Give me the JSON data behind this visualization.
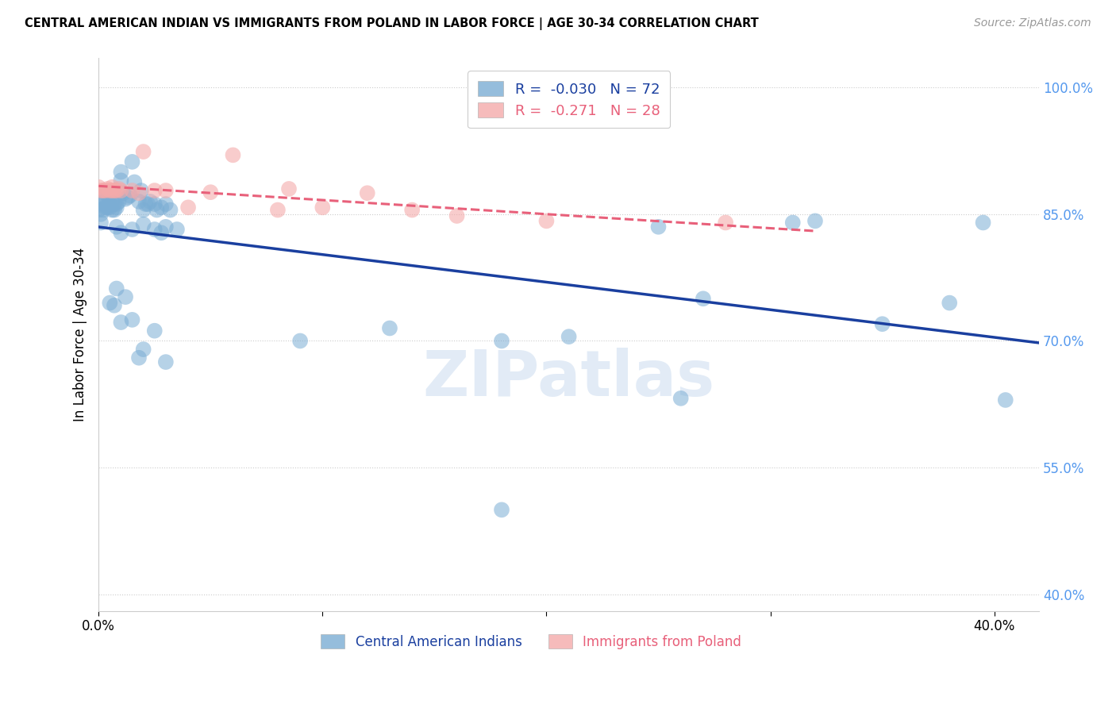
{
  "title": "CENTRAL AMERICAN INDIAN VS IMMIGRANTS FROM POLAND IN LABOR FORCE | AGE 30-34 CORRELATION CHART",
  "source": "Source: ZipAtlas.com",
  "ylabel": "In Labor Force | Age 30-34",
  "xlim": [
    0.0,
    0.42
  ],
  "ylim": [
    0.38,
    1.035
  ],
  "yticks": [
    0.4,
    0.55,
    0.7,
    0.85,
    1.0
  ],
  "ytick_labels": [
    "40.0%",
    "55.0%",
    "70.0%",
    "85.0%",
    "100.0%"
  ],
  "xticks": [
    0.0,
    0.1,
    0.2,
    0.3,
    0.4
  ],
  "xtick_labels": [
    "0.0%",
    "",
    "",
    "",
    "40.0%"
  ],
  "r_blue": -0.03,
  "n_blue": 72,
  "r_pink": -0.271,
  "n_pink": 28,
  "blue_color": "#7BADD4",
  "pink_color": "#F4AAAA",
  "line_blue": "#1A3F9F",
  "line_pink": "#E8607A",
  "watermark": "ZIPatlas",
  "blue_x": [
    0.0,
    0.0,
    0.001,
    0.001,
    0.002,
    0.002,
    0.003,
    0.003,
    0.003,
    0.004,
    0.004,
    0.005,
    0.005,
    0.005,
    0.006,
    0.006,
    0.007,
    0.007,
    0.008,
    0.008,
    0.009,
    0.01,
    0.01,
    0.011,
    0.012,
    0.013,
    0.014,
    0.015,
    0.016,
    0.018,
    0.019,
    0.02,
    0.021,
    0.022,
    0.023,
    0.025,
    0.026,
    0.028,
    0.03,
    0.032,
    0.005,
    0.007,
    0.008,
    0.01,
    0.012,
    0.015,
    0.018,
    0.02,
    0.025,
    0.03,
    0.008,
    0.01,
    0.015,
    0.02,
    0.025,
    0.028,
    0.03,
    0.035,
    0.09,
    0.13,
    0.18,
    0.21,
    0.25,
    0.26,
    0.31,
    0.32,
    0.27,
    0.35,
    0.38,
    0.395,
    0.405,
    0.18
  ],
  "blue_y": [
    0.87,
    0.855,
    0.85,
    0.84,
    0.855,
    0.862,
    0.858,
    0.865,
    0.875,
    0.858,
    0.862,
    0.862,
    0.874,
    0.858,
    0.855,
    0.865,
    0.855,
    0.862,
    0.862,
    0.858,
    0.865,
    0.89,
    0.9,
    0.875,
    0.868,
    0.87,
    0.872,
    0.912,
    0.888,
    0.865,
    0.878,
    0.855,
    0.862,
    0.862,
    0.865,
    0.862,
    0.855,
    0.858,
    0.862,
    0.855,
    0.745,
    0.742,
    0.762,
    0.722,
    0.752,
    0.725,
    0.68,
    0.69,
    0.712,
    0.675,
    0.835,
    0.828,
    0.832,
    0.838,
    0.832,
    0.828,
    0.835,
    0.832,
    0.7,
    0.715,
    0.7,
    0.705,
    0.835,
    0.632,
    0.84,
    0.842,
    0.75,
    0.72,
    0.745,
    0.84,
    0.63,
    0.5
  ],
  "pink_x": [
    0.0,
    0.001,
    0.002,
    0.003,
    0.004,
    0.005,
    0.006,
    0.006,
    0.007,
    0.008,
    0.009,
    0.01,
    0.015,
    0.018,
    0.02,
    0.025,
    0.03,
    0.04,
    0.05,
    0.06,
    0.08,
    0.085,
    0.1,
    0.12,
    0.14,
    0.16,
    0.2,
    0.28
  ],
  "pink_y": [
    0.882,
    0.878,
    0.878,
    0.878,
    0.88,
    0.878,
    0.878,
    0.882,
    0.878,
    0.878,
    0.88,
    0.878,
    0.878,
    0.875,
    0.924,
    0.878,
    0.878,
    0.858,
    0.876,
    0.92,
    0.855,
    0.88,
    0.858,
    0.875,
    0.855,
    0.848,
    0.842,
    0.84
  ]
}
